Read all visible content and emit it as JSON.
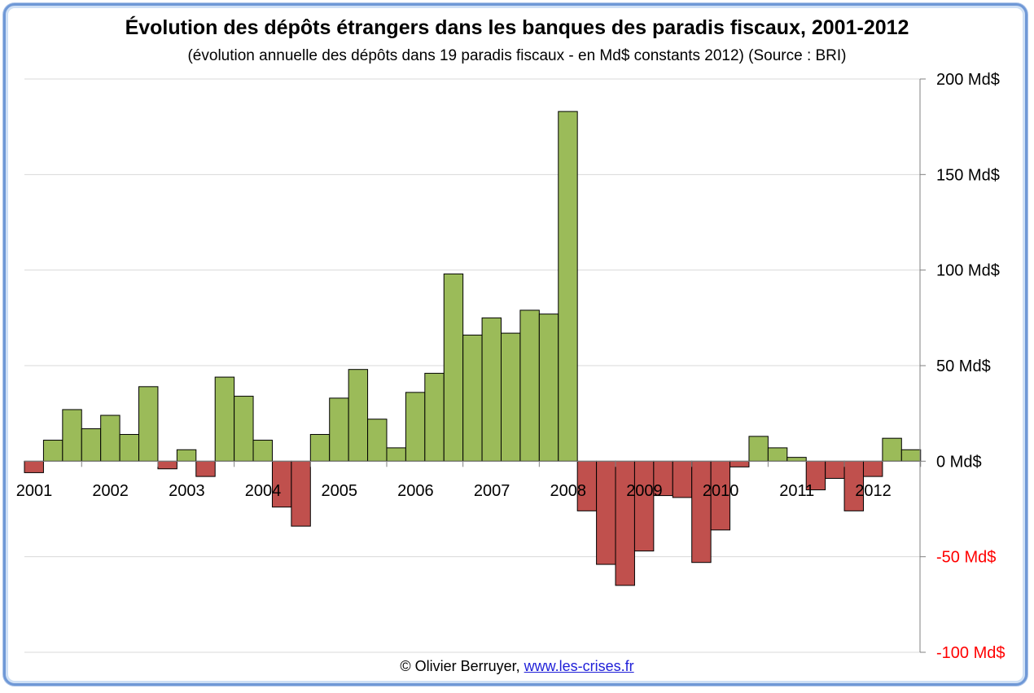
{
  "title": "Évolution des dépôts étrangers dans les banques des paradis fiscaux, 2001-2012",
  "subtitle": "(évolution annuelle des dépôts dans 19 paradis fiscaux - en Md$ constants 2012) (Source : BRI)",
  "footer": {
    "credit": "© Olivier Berruyer,",
    "link": "www.les-crises.fr"
  },
  "colors": {
    "positive": "#9bbb59",
    "negative": "#c0504d",
    "negative_tick_label": "#ff0000",
    "gridline": "#d9d9d9",
    "frame": "#6f98d6"
  },
  "chart_data": {
    "type": "bar",
    "title": "Évolution des dépôts étrangers dans les banques des paradis fiscaux, 2001-2012",
    "ylim": [
      -100,
      200
    ],
    "y_axis_side": "right",
    "y_ticks": [
      {
        "value": 200,
        "label": "200 Md$"
      },
      {
        "value": 150,
        "label": "150 Md$"
      },
      {
        "value": 100,
        "label": "100 Md$"
      },
      {
        "value": 50,
        "label": "50 Md$"
      },
      {
        "value": 0,
        "label": "0 Md$"
      },
      {
        "value": -50,
        "label": "-50 Md$"
      },
      {
        "value": -100,
        "label": "-100 Md$"
      }
    ],
    "grid": true,
    "x_tick_labels": [
      "2001",
      "2002",
      "2003",
      "2004",
      "2005",
      "2006",
      "2007",
      "2008",
      "2009",
      "2010",
      "2011",
      "2012"
    ],
    "values": [
      -6,
      11,
      27,
      17,
      24,
      14,
      39,
      -4,
      6,
      -8,
      44,
      34,
      11,
      -24,
      -34,
      14,
      33,
      48,
      22,
      7,
      36,
      46,
      98,
      66,
      75,
      67,
      79,
      77,
      183,
      -26,
      -54,
      -65,
      -47,
      -18,
      -19,
      -53,
      -36,
      -3,
      13,
      7,
      2,
      -15,
      -9,
      -26,
      -8,
      12,
      6
    ]
  }
}
